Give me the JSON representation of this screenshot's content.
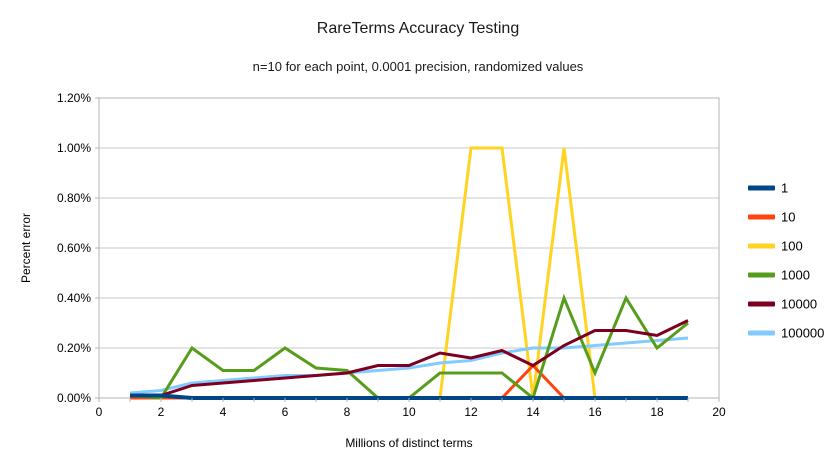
{
  "title": "RareTerms Accuracy Testing",
  "subtitle": "n=10 for each point, 0.0001 precision, randomized values",
  "chart_data": {
    "type": "line",
    "title": "RareTerms Accuracy Testing",
    "subtitle": "n=10 for each point, 0.0001 precision, randomized values",
    "xlabel": "Millions of distinct terms",
    "ylabel": "Percent error",
    "xlim": [
      0,
      20
    ],
    "ylim": [
      0,
      1.2
    ],
    "x_major_tick_interval": 2,
    "x_minor_tick_interval": 1,
    "xtick_labels": [
      "0",
      "2",
      "4",
      "6",
      "8",
      "10",
      "12",
      "14",
      "16",
      "18",
      "20"
    ],
    "ytick_labels": [
      "0.00%",
      "0.20%",
      "0.40%",
      "0.60%",
      "0.80%",
      "1.00%",
      "1.20%"
    ],
    "ytick_values": [
      0,
      0.2,
      0.4,
      0.6,
      0.8,
      1.0,
      1.2
    ],
    "grid": true,
    "legend_position": "right",
    "x": [
      1,
      2,
      3,
      4,
      5,
      6,
      7,
      8,
      9,
      10,
      11,
      12,
      13,
      14,
      15,
      16,
      17,
      18,
      19
    ],
    "series": [
      {
        "name": "1",
        "color": "#004586",
        "stroke_width": 4,
        "values": [
          0.01,
          0.01,
          0,
          0,
          0,
          0,
          0,
          0,
          0,
          0,
          0,
          0,
          0,
          0,
          0,
          0,
          0,
          0,
          0
        ]
      },
      {
        "name": "10",
        "color": "#ff420e",
        "stroke_width": 3,
        "values": [
          0,
          0,
          0,
          0,
          0,
          0,
          0,
          0,
          0,
          0,
          0,
          0,
          0,
          0.13,
          0,
          0,
          0,
          0,
          0
        ]
      },
      {
        "name": "100",
        "color": "#ffd320",
        "stroke_width": 3,
        "values": [
          0,
          0,
          0,
          0,
          0,
          0,
          0,
          0,
          0,
          0,
          0,
          1.0,
          1.0,
          0,
          1.0,
          0,
          0,
          0,
          0
        ]
      },
      {
        "name": "1000",
        "color": "#579d1c",
        "stroke_width": 3,
        "values": [
          0.01,
          0,
          0.2,
          0.11,
          0.11,
          0.2,
          0.12,
          0.11,
          0,
          0,
          0.1,
          0.1,
          0.1,
          0,
          0.4,
          0.1,
          0.4,
          0.2,
          0.3
        ]
      },
      {
        "name": "10000",
        "color": "#7e0021",
        "stroke_width": 3,
        "values": [
          0.01,
          0.01,
          0.05,
          0.06,
          0.07,
          0.08,
          0.09,
          0.1,
          0.13,
          0.13,
          0.18,
          0.16,
          0.19,
          0.13,
          0.21,
          0.27,
          0.27,
          0.25,
          0.31
        ]
      },
      {
        "name": "100000",
        "color": "#83caff",
        "stroke_width": 3,
        "values": [
          0.02,
          0.03,
          0.06,
          0.07,
          0.08,
          0.09,
          0.09,
          0.1,
          0.11,
          0.12,
          0.14,
          0.15,
          0.18,
          0.2,
          0.2,
          0.21,
          0.22,
          0.23,
          0.24
        ]
      }
    ],
    "draw_order": [
      "100",
      "10",
      "100000",
      "1000",
      "10000",
      "1"
    ],
    "colors": {
      "grid": "#c8c8c8",
      "axis": "#b3b3b3",
      "text": "#000000"
    }
  }
}
